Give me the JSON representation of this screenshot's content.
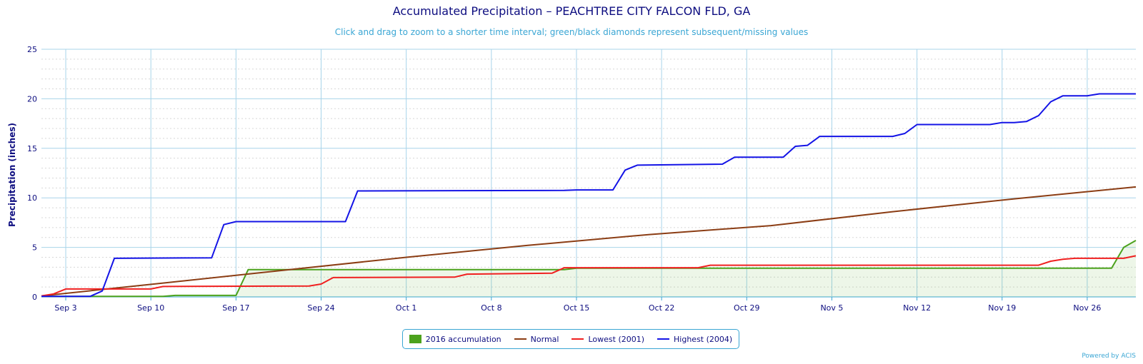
{
  "chart_data": {
    "type": "line",
    "title": "Accumulated Precipitation – PEACHTREE CITY FALCON FLD, GA",
    "subtitle": "Click and drag to zoom to a shorter time interval; green/black diamonds represent subsequent/missing values",
    "ylabel": "Precipitation (inches)",
    "xlabel": "",
    "ylim": [
      0,
      25
    ],
    "yticks": [
      0,
      5,
      10,
      15,
      20,
      25
    ],
    "xlim_day": [
      0,
      90
    ],
    "x_ticks": [
      {
        "day": 2,
        "label": "Sep 3"
      },
      {
        "day": 9,
        "label": "Sep 10"
      },
      {
        "day": 16,
        "label": "Sep 17"
      },
      {
        "day": 23,
        "label": "Sep 24"
      },
      {
        "day": 30,
        "label": "Oct 1"
      },
      {
        "day": 37,
        "label": "Oct 8"
      },
      {
        "day": 44,
        "label": "Oct 15"
      },
      {
        "day": 51,
        "label": "Oct 22"
      },
      {
        "day": 58,
        "label": "Oct 29"
      },
      {
        "day": 65,
        "label": "Nov 5"
      },
      {
        "day": 72,
        "label": "Nov 12"
      },
      {
        "day": 79,
        "label": "Nov 19"
      },
      {
        "day": 86,
        "label": "Nov 26"
      }
    ],
    "grid": true,
    "legend_position": "bottom-center",
    "series": [
      {
        "name": "2016 accumulation",
        "type": "area",
        "color": "#4ca21d",
        "points": [
          [
            0,
            0.05
          ],
          [
            5,
            0.05
          ],
          [
            10,
            0.05
          ],
          [
            11,
            0.15
          ],
          [
            16,
            0.15
          ],
          [
            17,
            2.75
          ],
          [
            43,
            2.75
          ],
          [
            44,
            2.9
          ],
          [
            88,
            2.9
          ],
          [
            89,
            5.0
          ],
          [
            90,
            5.7
          ]
        ]
      },
      {
        "name": "Normal",
        "type": "line",
        "color": "#8b3d14",
        "points": [
          [
            0,
            0.1
          ],
          [
            10,
            1.4
          ],
          [
            20,
            2.7
          ],
          [
            30,
            4.0
          ],
          [
            40,
            5.2
          ],
          [
            50,
            6.3
          ],
          [
            60,
            7.2
          ],
          [
            70,
            8.6
          ],
          [
            80,
            9.9
          ],
          [
            90,
            11.1
          ]
        ]
      },
      {
        "name": "Lowest (2001)",
        "type": "line",
        "color": "#f02020",
        "points": [
          [
            0,
            0.1
          ],
          [
            1,
            0.3
          ],
          [
            2,
            0.8
          ],
          [
            9,
            0.8
          ],
          [
            10,
            1.05
          ],
          [
            22,
            1.1
          ],
          [
            23,
            1.3
          ],
          [
            24,
            1.95
          ],
          [
            34,
            2.0
          ],
          [
            35,
            2.3
          ],
          [
            42,
            2.4
          ],
          [
            43,
            2.95
          ],
          [
            54,
            2.95
          ],
          [
            55,
            3.2
          ],
          [
            82,
            3.2
          ],
          [
            83,
            3.6
          ],
          [
            84,
            3.8
          ],
          [
            85,
            3.9
          ],
          [
            89,
            3.9
          ],
          [
            90,
            4.15
          ]
        ]
      },
      {
        "name": "Highest (2004)",
        "type": "line",
        "color": "#1414e6",
        "points": [
          [
            0,
            0.05
          ],
          [
            4,
            0.05
          ],
          [
            5,
            0.6
          ],
          [
            6,
            3.9
          ],
          [
            14,
            3.95
          ],
          [
            15,
            7.3
          ],
          [
            16,
            7.6
          ],
          [
            25,
            7.6
          ],
          [
            26,
            10.7
          ],
          [
            43,
            10.75
          ],
          [
            44,
            10.8
          ],
          [
            47,
            10.8
          ],
          [
            48,
            12.8
          ],
          [
            49,
            13.3
          ],
          [
            56,
            13.4
          ],
          [
            57,
            14.1
          ],
          [
            61,
            14.1
          ],
          [
            62,
            15.2
          ],
          [
            63,
            15.3
          ],
          [
            64,
            16.2
          ],
          [
            70,
            16.2
          ],
          [
            71,
            16.5
          ],
          [
            72,
            17.4
          ],
          [
            78,
            17.4
          ],
          [
            79,
            17.6
          ],
          [
            80,
            17.6
          ],
          [
            81,
            17.7
          ],
          [
            82,
            18.3
          ],
          [
            83,
            19.7
          ],
          [
            84,
            20.3
          ],
          [
            86,
            20.3
          ],
          [
            87,
            20.5
          ],
          [
            90,
            20.5
          ]
        ]
      }
    ]
  },
  "credit": "Powered by ACIS"
}
